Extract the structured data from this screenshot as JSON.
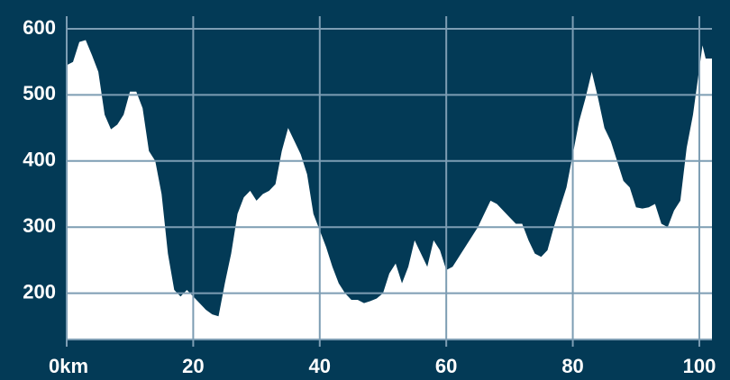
{
  "chart_data": {
    "type": "area",
    "x": [
      0,
      1,
      2,
      3,
      4,
      5,
      6,
      7,
      8,
      9,
      10,
      11,
      12,
      13,
      14,
      15,
      16,
      17,
      18,
      19,
      20,
      21,
      22,
      23,
      24,
      25,
      26,
      27,
      28,
      29,
      30,
      31,
      32,
      33,
      34,
      35,
      36,
      37,
      38,
      39,
      40,
      41,
      42,
      43,
      44,
      45,
      46,
      47,
      48,
      49,
      50,
      51,
      52,
      53,
      54,
      55,
      56,
      57,
      58,
      59,
      60,
      61,
      62,
      63,
      64,
      65,
      66,
      67,
      68,
      69,
      70,
      71,
      72,
      73,
      74,
      75,
      76,
      77,
      78,
      79,
      80,
      81,
      82,
      83,
      84,
      85,
      86,
      87,
      88,
      89,
      90,
      91,
      92,
      93,
      94,
      95,
      96,
      97,
      98,
      99,
      100,
      100.5,
      101,
      102
    ],
    "values": [
      545,
      550,
      580,
      583,
      560,
      535,
      470,
      448,
      455,
      470,
      505,
      505,
      480,
      415,
      400,
      350,
      260,
      205,
      195,
      205,
      195,
      185,
      175,
      168,
      165,
      215,
      260,
      320,
      345,
      355,
      340,
      350,
      355,
      365,
      415,
      450,
      430,
      410,
      380,
      320,
      295,
      270,
      240,
      215,
      200,
      190,
      190,
      185,
      188,
      192,
      200,
      230,
      245,
      215,
      240,
      280,
      260,
      240,
      280,
      265,
      235,
      240,
      255,
      270,
      285,
      300,
      320,
      340,
      335,
      325,
      315,
      305,
      305,
      280,
      260,
      255,
      265,
      300,
      330,
      360,
      410,
      460,
      495,
      535,
      495,
      450,
      430,
      400,
      370,
      360,
      330,
      328,
      330,
      335,
      305,
      300,
      325,
      340,
      420,
      470,
      540,
      575,
      555,
      555
    ],
    "color": "#ffffff",
    "xlim": [
      0,
      102
    ],
    "ylim": [
      130,
      600
    ],
    "xticks": [
      {
        "value": 0,
        "label": "0km"
      },
      20,
      40,
      60,
      80,
      100
    ],
    "yticks": [
      200,
      300,
      400,
      500,
      600
    ],
    "grid": true
  }
}
